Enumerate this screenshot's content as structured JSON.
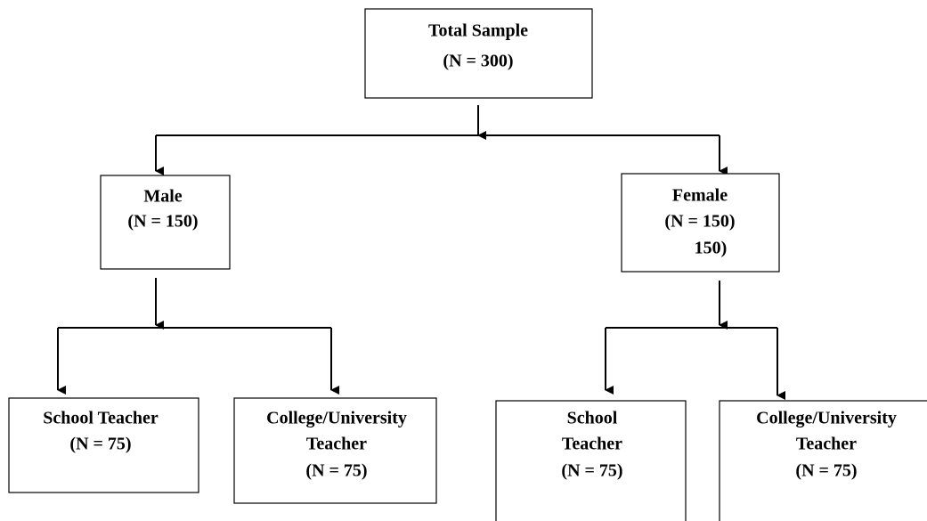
{
  "nodes": [
    {
      "lines": [
        "Total Sample",
        "(N = 300)"
      ]
    },
    {
      "lines": [
        "Male",
        "(N = 150)"
      ]
    },
    {
      "lines": [
        "Female",
        "(N = 150)",
        "150)"
      ]
    },
    {
      "lines": [
        "School Teacher",
        "(N = 75)"
      ]
    },
    {
      "lines": [
        "College/University",
        "Teacher",
        "(N = 75)"
      ]
    },
    {
      "lines": [
        "School",
        "Teacher",
        "(N = 75)"
      ]
    },
    {
      "lines": [
        "College/University",
        "Teacher",
        "(N = 75)"
      ]
    }
  ]
}
